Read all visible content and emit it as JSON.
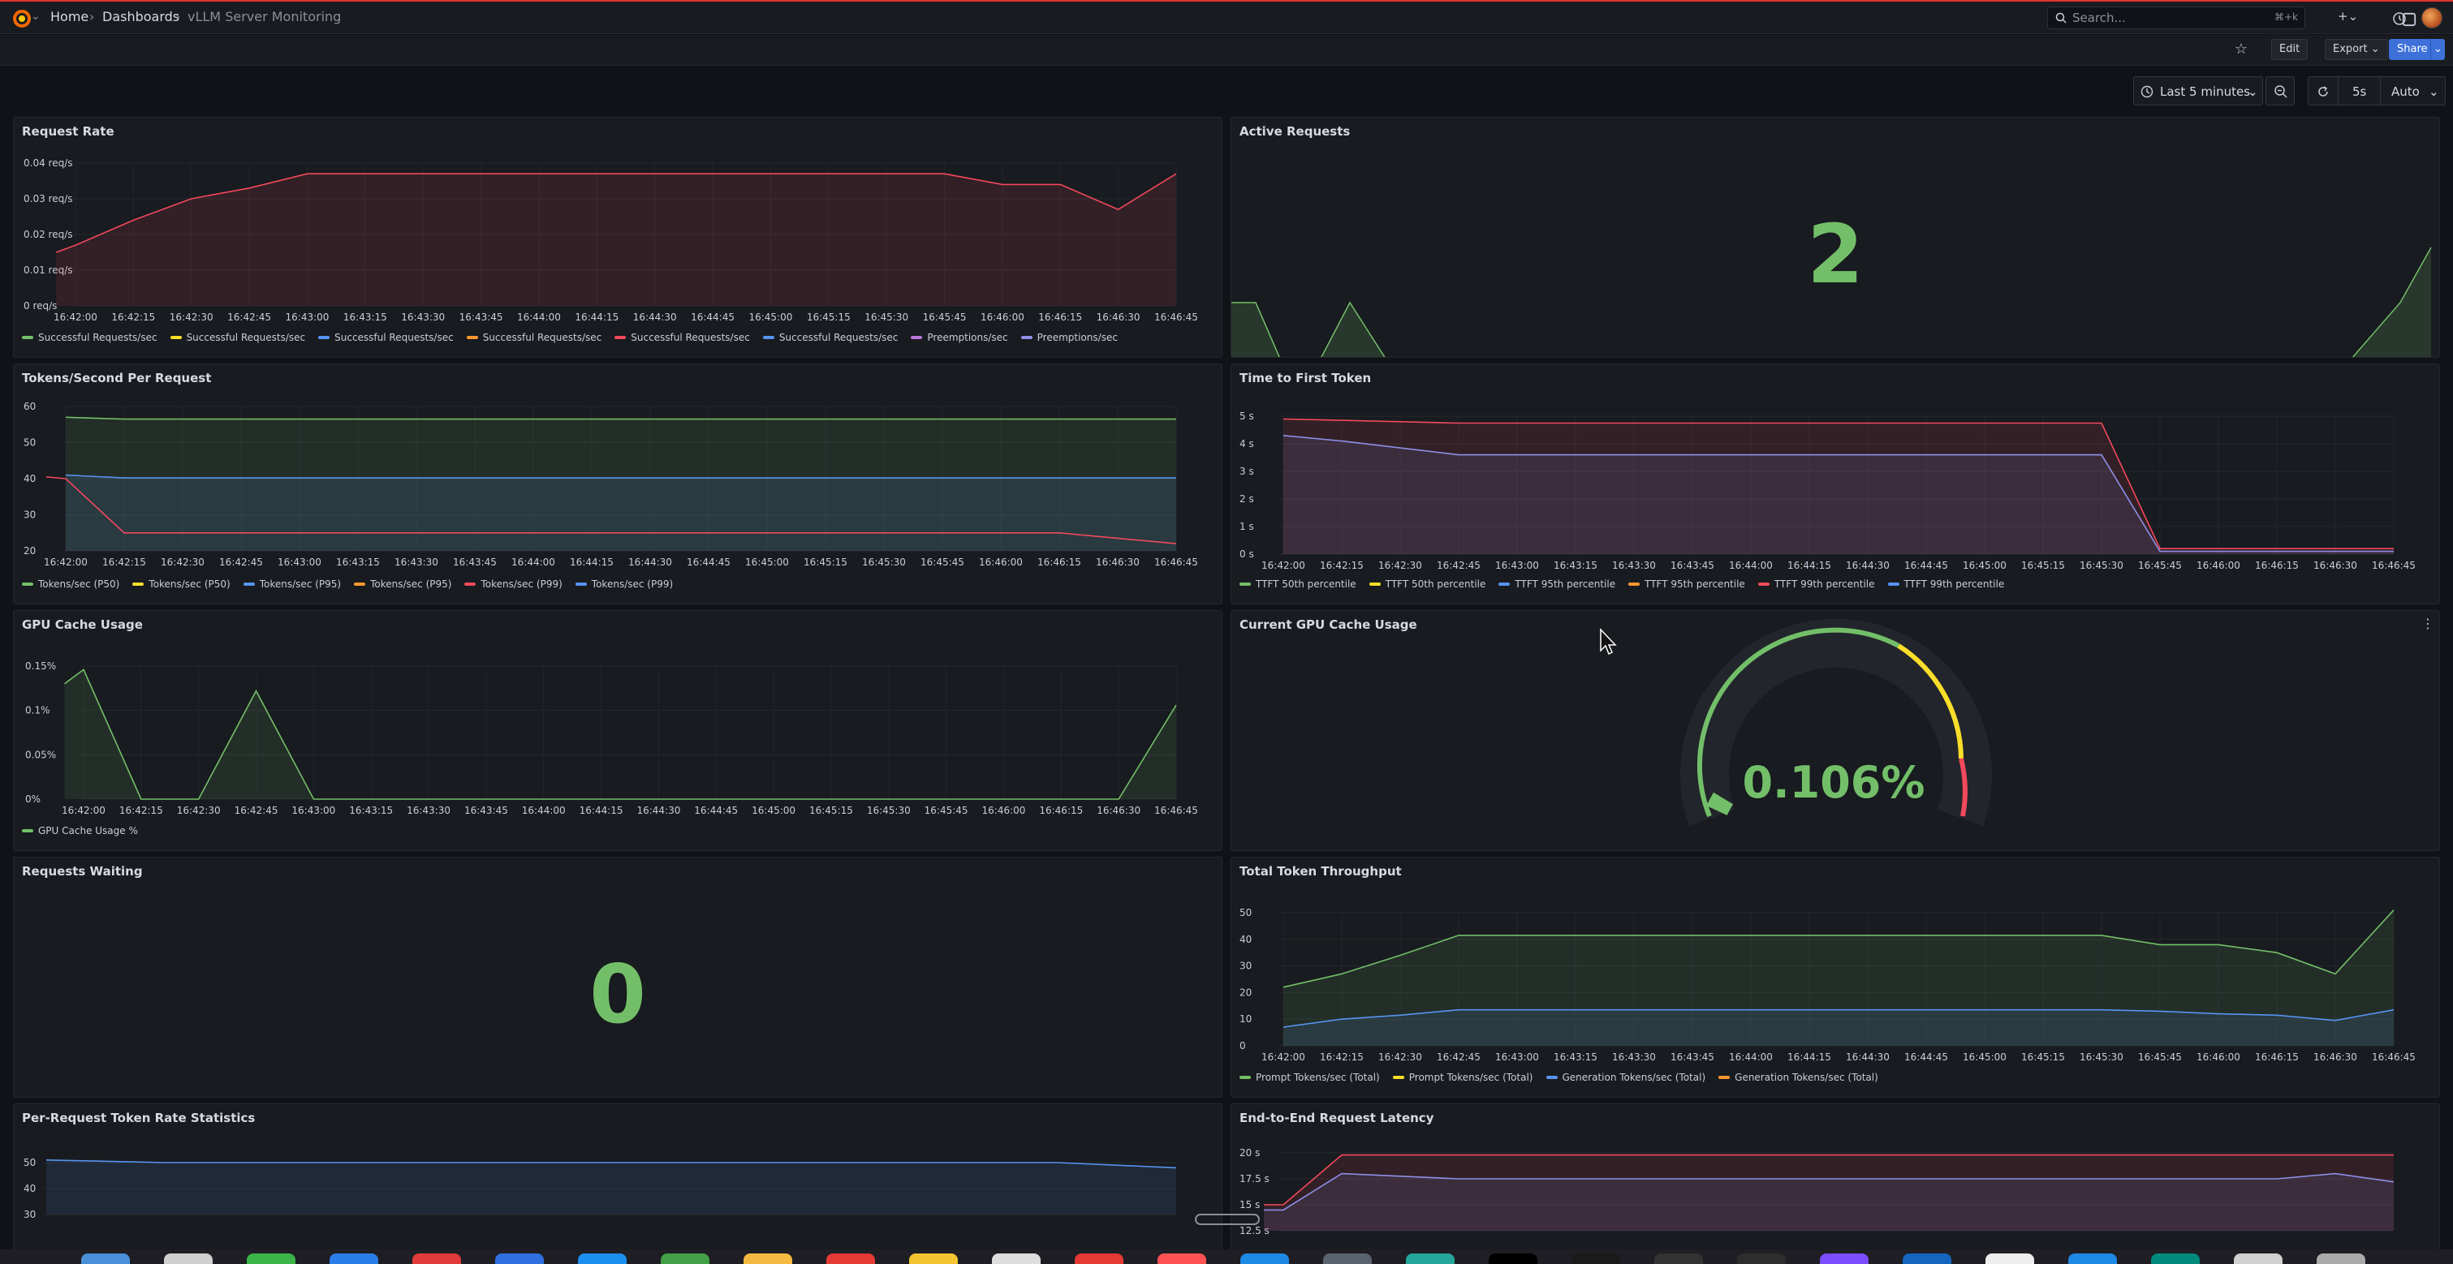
{
  "breadcrumb": {
    "home": "Home",
    "dashboards": "Dashboards",
    "current": "vLLM Server Monitoring"
  },
  "search": {
    "placeholder": "Search...",
    "shortcut": "⌘+k"
  },
  "toolbar": {
    "edit": "Edit",
    "export": "Export",
    "share": "Share"
  },
  "time": {
    "range": "Last 5 minutes",
    "refresh_interval": "5s",
    "refresh_mode": "Auto"
  },
  "x_ticks": [
    "16:42:00",
    "16:42:15",
    "16:42:30",
    "16:42:45",
    "16:43:00",
    "16:43:15",
    "16:43:30",
    "16:43:45",
    "16:44:00",
    "16:44:15",
    "16:44:30",
    "16:44:45",
    "16:45:00",
    "16:45:15",
    "16:45:30",
    "16:45:45",
    "16:46:00",
    "16:46:15",
    "16:46:30",
    "16:46:45"
  ],
  "colors": {
    "green": "#73bf69",
    "yellow": "#fade2a",
    "blue": "#5794f2",
    "orange": "#ff9830",
    "red": "#f2495c",
    "purple": "#b877d9",
    "lavender": "#8f8fe8"
  },
  "panels": {
    "request_rate": {
      "title": "Request Rate",
      "y_ticks": [
        "0.04 req/s",
        "0.03 req/s",
        "0.02 req/s",
        "0.01 req/s",
        "0 req/s"
      ],
      "legend": [
        "Successful Requests/sec",
        "Successful Requests/sec",
        "Successful Requests/sec",
        "Successful Requests/sec",
        "Successful Requests/sec",
        "Successful Requests/sec",
        "Preemptions/sec",
        "Preemptions/sec"
      ]
    },
    "active_requests": {
      "title": "Active Requests",
      "value": "2"
    },
    "tokens_per_request": {
      "title": "Tokens/Second Per Request",
      "y_ticks": [
        "60",
        "50",
        "40",
        "30",
        "20"
      ],
      "legend": [
        "Tokens/sec (P50)",
        "Tokens/sec (P50)",
        "Tokens/sec (P95)",
        "Tokens/sec (P95)",
        "Tokens/sec (P99)",
        "Tokens/sec (P99)"
      ]
    },
    "ttft": {
      "title": "Time to First Token",
      "y_ticks": [
        "5 s",
        "4 s",
        "3 s",
        "2 s",
        "1 s",
        "0 s"
      ],
      "legend": [
        "TTFT 50th percentile",
        "TTFT 50th percentile",
        "TTFT 95th percentile",
        "TTFT 95th percentile",
        "TTFT 99th percentile",
        "TTFT 99th percentile"
      ]
    },
    "gpu_cache": {
      "title": "GPU Cache Usage",
      "y_ticks": [
        "0.15%",
        "0.1%",
        "0.05%",
        "0%"
      ],
      "legend": [
        "GPU Cache Usage %"
      ]
    },
    "current_gpu": {
      "title": "Current GPU Cache Usage",
      "value": "0.106%",
      "fraction": 0.00106
    },
    "requests_waiting": {
      "title": "Requests Waiting",
      "value": "0"
    },
    "token_throughput": {
      "title": "Total Token Throughput",
      "y_ticks": [
        "50",
        "40",
        "30",
        "20",
        "10",
        "0"
      ],
      "legend": [
        "Prompt Tokens/sec (Total)",
        "Prompt Tokens/sec (Total)",
        "Generation Tokens/sec (Total)",
        "Generation Tokens/sec (Total)"
      ]
    },
    "per_request_stats": {
      "title": "Per-Request Token Rate Statistics",
      "y_ticks": [
        "50",
        "40",
        "30"
      ]
    },
    "e2e_latency": {
      "title": "End-to-End Request Latency",
      "y_ticks": [
        "20 s",
        "17.5 s",
        "15 s",
        "12.5 s"
      ]
    }
  },
  "chart_data": [
    {
      "type": "area",
      "title": "Request Rate",
      "ylim": [
        0,
        0.04
      ],
      "x": [
        "16:41:55",
        "16:42:00",
        "16:42:15",
        "16:42:30",
        "16:42:45",
        "16:43:00",
        "16:43:15",
        "16:45:45",
        "16:46:00",
        "16:46:15",
        "16:46:30",
        "16:46:45"
      ],
      "series": [
        {
          "name": "Successful Requests/sec",
          "values": [
            0.015,
            0.017,
            0.024,
            0.03,
            0.033,
            0.037,
            0.037,
            0.037,
            0.034,
            0.034,
            0.027,
            0.037
          ]
        }
      ]
    },
    {
      "type": "line",
      "title": "Tokens/Second Per Request",
      "ylim": [
        20,
        60
      ],
      "x": [
        "16:42:00",
        "16:42:15",
        "16:46:45"
      ],
      "series": [
        {
          "name": "Tokens/sec (P50)",
          "values": [
            57,
            56.5,
            56.5
          ]
        },
        {
          "name": "Tokens/sec (P95)",
          "values": [
            41,
            40.2,
            40.2
          ]
        },
        {
          "name": "Tokens/sec (P99)",
          "values": [
            40,
            25,
            22
          ]
        }
      ]
    },
    {
      "type": "line",
      "title": "Time to First Token",
      "ylim": [
        0,
        5
      ],
      "x": [
        "16:42:00",
        "16:42:15",
        "16:42:45",
        "16:45:30",
        "16:45:45",
        "16:46:45"
      ],
      "series": [
        {
          "name": "TTFT 99th percentile",
          "values": [
            4.9,
            4.85,
            4.75,
            4.75,
            0.2,
            0.2
          ]
        },
        {
          "name": "TTFT 95th percentile",
          "values": [
            4.3,
            4.1,
            3.6,
            3.6,
            0.1,
            0.1
          ]
        }
      ]
    },
    {
      "type": "area",
      "title": "GPU Cache Usage",
      "ylim": [
        0,
        0.15
      ],
      "x": [
        "16:41:55",
        "16:42:00",
        "16:42:15",
        "16:42:30",
        "16:42:45",
        "16:43:00",
        "16:46:30",
        "16:46:45"
      ],
      "series": [
        {
          "name": "GPU Cache Usage %",
          "values": [
            0.13,
            0.146,
            0,
            0,
            0.122,
            0,
            0,
            0.106
          ]
        }
      ]
    },
    {
      "type": "area",
      "title": "Total Token Throughput",
      "ylim": [
        0,
        50
      ],
      "x": [
        "16:42:00",
        "16:42:15",
        "16:42:30",
        "16:42:45",
        "16:45:30",
        "16:45:45",
        "16:46:00",
        "16:46:15",
        "16:46:30",
        "16:46:45"
      ],
      "series": [
        {
          "name": "Prompt Tokens/sec (Total)",
          "values": [
            22,
            27,
            34,
            41.5,
            41.5,
            38,
            38,
            35,
            27,
            51
          ]
        },
        {
          "name": "Generation Tokens/sec (Total)",
          "values": [
            7,
            10,
            11.5,
            13.5,
            13.5,
            13,
            12,
            11.5,
            9.5,
            13.5
          ]
        }
      ]
    }
  ]
}
